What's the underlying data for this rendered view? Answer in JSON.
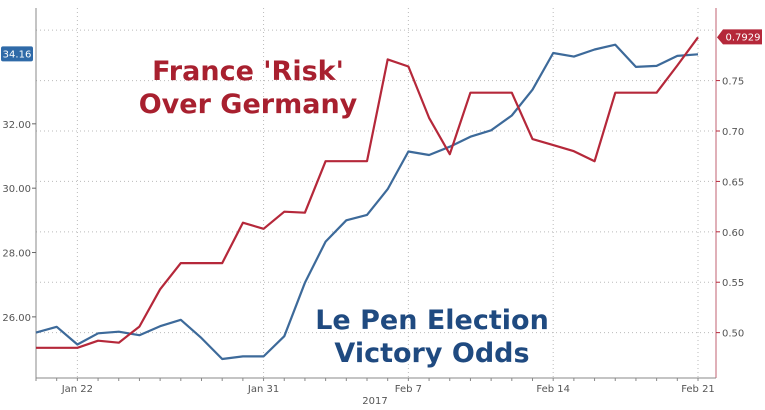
{
  "chart_data": {
    "type": "line",
    "title": "",
    "xlabel": "2017",
    "x": [
      "Jan 20",
      "Jan 21",
      "Jan 22",
      "Jan 23",
      "Jan 24",
      "Jan 25",
      "Jan 26",
      "Jan 27",
      "Jan 28",
      "Jan 29",
      "Jan 30",
      "Jan 31",
      "Feb 1",
      "Feb 2",
      "Feb 3",
      "Feb 4",
      "Feb 5",
      "Feb 6",
      "Feb 7",
      "Feb 8",
      "Feb 9",
      "Feb 10",
      "Feb 11",
      "Feb 12",
      "Feb 13",
      "Feb 14",
      "Feb 15",
      "Feb 16",
      "Feb 17",
      "Feb 18",
      "Feb 19",
      "Feb 20",
      "Feb 21"
    ],
    "x_ticks": [
      "Jan 22",
      "Jan 31",
      "Feb 7",
      "Feb 14",
      "Feb 21"
    ],
    "x_tick_index": [
      2,
      11,
      18,
      25,
      32
    ],
    "left_axis": {
      "ticks": [
        "26.00",
        "28.00",
        "30.00",
        "32.00"
      ],
      "tick_values": [
        26,
        28,
        30,
        32
      ],
      "ylim": [
        24.1,
        35.6
      ],
      "last_value_label": "34.16"
    },
    "right_axis": {
      "ticks": [
        "0.50",
        "0.55",
        "0.60",
        "0.65",
        "0.70",
        "0.75"
      ],
      "tick_values": [
        0.5,
        0.55,
        0.6,
        0.65,
        0.7,
        0.75
      ],
      "ylim": [
        0.455,
        0.822
      ],
      "last_value_label": "0.7929"
    },
    "series": [
      {
        "name": "Le Pen Election Victory Odds",
        "axis": "left",
        "color": "#3d6a9a",
        "values": [
          25.51,
          25.69,
          25.14,
          25.49,
          25.54,
          25.43,
          25.71,
          25.91,
          25.34,
          24.69,
          24.77,
          24.77,
          25.4,
          27.06,
          28.34,
          29.0,
          29.17,
          29.97,
          31.14,
          31.03,
          31.29,
          31.6,
          31.8,
          32.26,
          33.06,
          34.2,
          34.09,
          34.31,
          34.46,
          33.77,
          33.8,
          34.11,
          34.16
        ]
      },
      {
        "name": "France 'Risk' Over Germany",
        "axis": "right",
        "color": "#b5283a",
        "values": [
          0.485,
          0.485,
          0.485,
          0.492,
          0.49,
          0.506,
          0.543,
          0.569,
          0.569,
          0.569,
          0.609,
          0.603,
          0.62,
          0.619,
          0.67,
          0.67,
          0.67,
          0.771,
          0.764,
          0.713,
          0.677,
          0.738,
          0.738,
          0.738,
          0.692,
          0.686,
          0.68,
          0.67,
          0.738,
          0.738,
          0.738,
          0.765,
          0.7929
        ]
      }
    ],
    "annotations": {
      "red_line1": "France 'Risk'",
      "red_line2": "Over Germany",
      "blue_line1": "Le Pen Election",
      "blue_line2": "Victory Odds"
    },
    "grid": true,
    "legend": "none"
  }
}
